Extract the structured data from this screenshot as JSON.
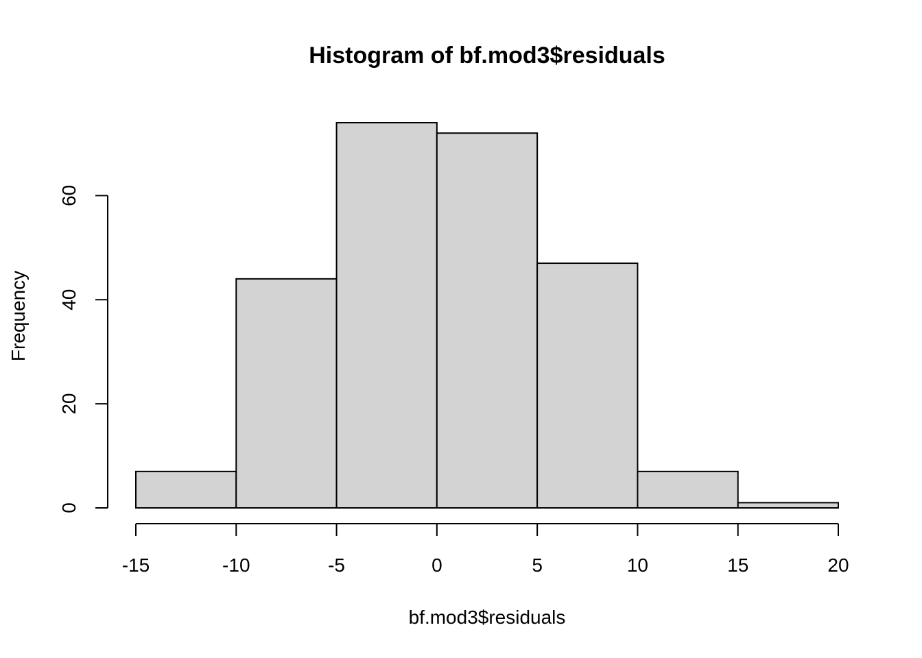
{
  "chart_data": {
    "type": "bar",
    "title": "Histogram of bf.mod3$residuals",
    "xlabel": "bf.mod3$residuals",
    "ylabel": "Frequency",
    "bins": [
      {
        "x0": -15,
        "x1": -10,
        "count": 7
      },
      {
        "x0": -10,
        "x1": -5,
        "count": 44
      },
      {
        "x0": -5,
        "x1": 0,
        "count": 74
      },
      {
        "x0": 0,
        "x1": 5,
        "count": 72
      },
      {
        "x0": 5,
        "x1": 10,
        "count": 47
      },
      {
        "x0": 10,
        "x1": 15,
        "count": 7
      },
      {
        "x0": 15,
        "x1": 20,
        "count": 1
      }
    ],
    "x_ticks": [
      -15,
      -10,
      -5,
      0,
      5,
      10,
      15,
      20
    ],
    "x_tick_labels": [
      "-15",
      "-10",
      "-5",
      "0",
      "5",
      "10",
      "15",
      "20"
    ],
    "y_ticks": [
      0,
      20,
      40,
      60
    ],
    "y_tick_labels": [
      "0",
      "20",
      "40",
      "60"
    ],
    "xlim": [
      -15,
      20
    ],
    "ylim": [
      0,
      74
    ],
    "grid": false,
    "legend": "none",
    "colors": {
      "bar_fill": "#d3d3d3",
      "bar_stroke": "#000000",
      "axis": "#000000",
      "background": "#ffffff"
    }
  }
}
